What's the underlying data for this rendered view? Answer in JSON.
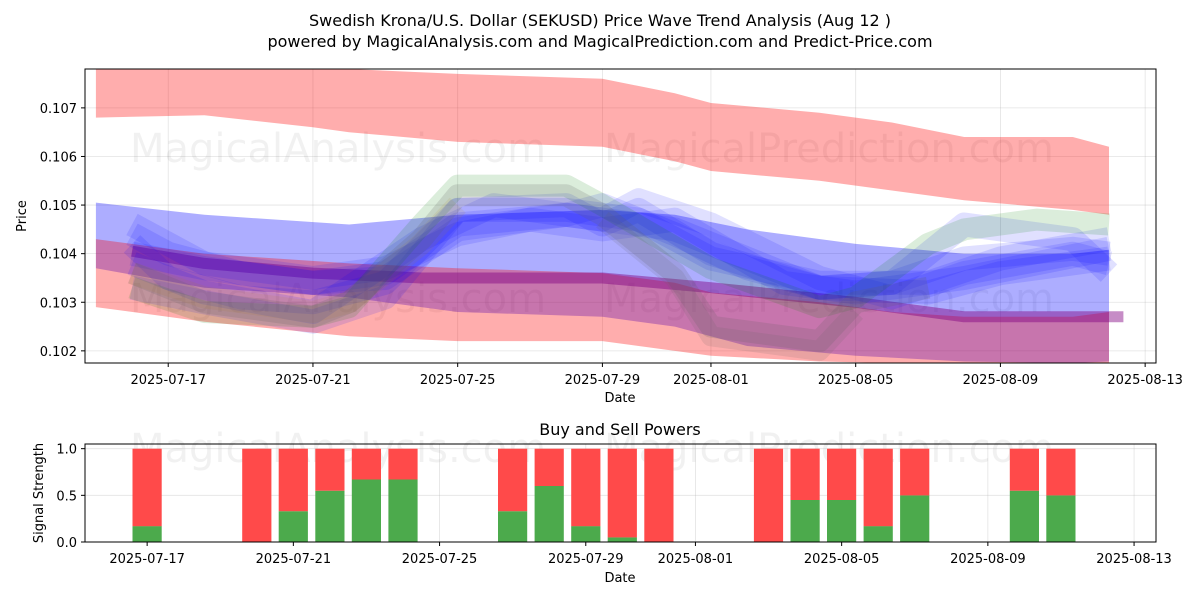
{
  "title_line1": "Swedish Krona/U.S. Dollar (SEKUSD) Price Wave Trend Analysis (Aug 12 )",
  "title_line2": "powered by MagicalAnalysis.com and MagicalPrediction.com and Predict-Price.com",
  "watermarks": [
    "MagicalAnalysis.com",
    "MagicalPrediction.com"
  ],
  "colors": {
    "red": "#ff0000",
    "blue": "#0000ff",
    "green": "#008000",
    "purple": "#800080",
    "buy": "#4caa4c",
    "sell": "#ff4a4a"
  },
  "chart_data": [
    {
      "type": "area",
      "title": "Swedish Krona/U.S. Dollar (SEKUSD) Price Wave Trend Analysis (Aug 12 )",
      "xlabel": "Date",
      "ylabel": "Price",
      "x_range": [
        "2025-07-14.7",
        "2025-08-13.3"
      ],
      "ylim": [
        0.10175,
        0.1078
      ],
      "x_ticks": [
        "2025-07-17",
        "2025-07-21",
        "2025-07-25",
        "2025-07-29",
        "2025-08-01",
        "2025-08-05",
        "2025-08-09",
        "2025-08-13"
      ],
      "y_ticks": [
        "0.102",
        "0.103",
        "0.104",
        "0.105",
        "0.106",
        "0.107"
      ],
      "grid": true,
      "bands": [
        {
          "name": "upper-red-band",
          "color": "red",
          "alpha": 0.32,
          "x": [
            "2025-07-15",
            "2025-07-18",
            "2025-07-21",
            "2025-07-22",
            "2025-07-25",
            "2025-07-29",
            "2025-07-31",
            "2025-08-01",
            "2025-08-04",
            "2025-08-06",
            "2025-08-08",
            "2025-08-11",
            "2025-08-12"
          ],
          "upper": [
            0.1078,
            0.1078,
            0.1078,
            0.1078,
            0.1077,
            0.1076,
            0.1073,
            0.1071,
            0.1069,
            0.1067,
            0.1064,
            0.1064,
            0.1062
          ],
          "lower": [
            0.1068,
            0.10685,
            0.1066,
            0.1065,
            0.1063,
            0.1062,
            0.1059,
            0.1057,
            0.1055,
            0.1053,
            0.1051,
            0.1049,
            0.1048
          ]
        },
        {
          "name": "blue-channel-band",
          "color": "blue",
          "alpha": 0.32,
          "x": [
            "2025-07-15",
            "2025-07-18",
            "2025-07-22",
            "2025-07-25",
            "2025-07-29",
            "2025-07-31",
            "2025-08-02",
            "2025-08-05",
            "2025-08-08",
            "2025-08-11",
            "2025-08-12"
          ],
          "upper": [
            0.10505,
            0.1048,
            0.1046,
            0.1048,
            0.1049,
            0.1048,
            0.1045,
            0.1042,
            0.104,
            0.104,
            0.10408
          ],
          "lower": [
            0.1037,
            0.1033,
            0.1031,
            0.1028,
            0.1027,
            0.1025,
            0.1021,
            0.1019,
            0.10178,
            0.10175,
            0.10178
          ]
        },
        {
          "name": "lower-red-band",
          "color": "red",
          "alpha": 0.32,
          "x": [
            "2025-07-15",
            "2025-07-18",
            "2025-07-22",
            "2025-07-25",
            "2025-07-29",
            "2025-07-31",
            "2025-08-01",
            "2025-08-04",
            "2025-08-06",
            "2025-08-08",
            "2025-08-11",
            "2025-08-12"
          ],
          "upper": [
            0.1043,
            0.104,
            0.1038,
            0.1037,
            0.1036,
            0.1034,
            0.1032,
            0.103,
            0.1028,
            0.1027,
            0.1027,
            0.1028
          ],
          "lower": [
            0.1029,
            0.1026,
            0.1023,
            0.1022,
            0.1022,
            0.102,
            0.1019,
            0.10178,
            0.10175,
            0.10175,
            0.10175,
            0.10175
          ]
        }
      ],
      "lines": [
        {
          "name": "purple-trend",
          "color": "purple",
          "alpha": 0.45,
          "width": 11,
          "x": [
            "2025-07-16",
            "2025-07-18",
            "2025-07-21",
            "2025-07-24",
            "2025-07-29",
            "2025-08-01",
            "2025-08-05",
            "2025-08-08",
            "2025-08-12.4"
          ],
          "y": [
            0.10405,
            0.1038,
            0.1036,
            0.1035,
            0.1035,
            0.1033,
            0.103,
            0.1027,
            0.1027
          ]
        },
        {
          "name": "blue-wave-1",
          "color": "blue",
          "alpha": 0.12,
          "width": 24,
          "x": [
            "2025-07-16",
            "2025-07-17",
            "2025-07-19",
            "2025-07-21",
            "2025-07-23",
            "2025-07-25",
            "2025-07-28",
            "2025-07-30",
            "2025-08-01",
            "2025-08-04",
            "2025-08-07",
            "2025-08-09",
            "2025-08-12"
          ],
          "y": [
            0.1042,
            0.1035,
            0.1031,
            0.103,
            0.1034,
            0.1049,
            0.1049,
            0.1047,
            0.1039,
            0.1034,
            0.1034,
            0.1039,
            0.1043
          ]
        },
        {
          "name": "blue-wave-2",
          "color": "blue",
          "alpha": 0.12,
          "width": 24,
          "x": [
            "2025-07-16",
            "2025-07-17",
            "2025-07-19",
            "2025-07-21",
            "2025-07-23",
            "2025-07-25",
            "2025-07-28",
            "2025-07-29",
            "2025-07-31",
            "2025-08-02",
            "2025-08-04",
            "2025-08-07",
            "2025-08-09",
            "2025-08-12"
          ],
          "y": [
            0.1044,
            0.104,
            0.1036,
            0.1034,
            0.1036,
            0.1046,
            0.1048,
            0.105,
            0.1044,
            0.1037,
            0.1033,
            0.1032,
            0.1036,
            0.1039
          ]
        },
        {
          "name": "blue-wave-3",
          "color": "blue",
          "alpha": 0.12,
          "width": 24,
          "x": [
            "2025-07-16",
            "2025-07-18",
            "2025-07-21",
            "2025-07-22",
            "2025-07-24",
            "2025-07-26",
            "2025-07-29",
            "2025-07-30",
            "2025-08-01",
            "2025-08-04",
            "2025-08-06",
            "2025-08-08",
            "2025-08-11",
            "2025-08-12"
          ],
          "y": [
            0.1038,
            0.1032,
            0.1028,
            0.1033,
            0.1043,
            0.105,
            0.1047,
            0.1051,
            0.1046,
            0.1035,
            0.1031,
            0.1036,
            0.104,
            0.1038
          ]
        },
        {
          "name": "blue-wave-4",
          "color": "blue",
          "alpha": 0.12,
          "width": 24,
          "x": [
            "2025-07-16",
            "2025-07-18",
            "2025-07-21",
            "2025-07-23",
            "2025-07-25",
            "2025-07-27",
            "2025-07-29",
            "2025-07-31",
            "2025-08-03",
            "2025-08-05",
            "2025-08-08",
            "2025-08-10",
            "2025-08-12"
          ],
          "y": [
            0.1046,
            0.1038,
            0.1035,
            0.1037,
            0.1044,
            0.1047,
            0.1045,
            0.1047,
            0.1034,
            0.1032,
            0.1035,
            0.1038,
            0.1041
          ]
        },
        {
          "name": "blue-wave-5",
          "color": "blue",
          "alpha": 0.12,
          "width": 24,
          "x": [
            "2025-07-16",
            "2025-07-18",
            "2025-07-21",
            "2025-07-23",
            "2025-07-25",
            "2025-07-28",
            "2025-07-29",
            "2025-07-30",
            "2025-08-01",
            "2025-08-04",
            "2025-08-06",
            "2025-08-08",
            "2025-08-11",
            "2025-08-12"
          ],
          "y": [
            0.1033,
            0.103,
            0.1026,
            0.1031,
            0.1049,
            0.105,
            0.1046,
            0.1049,
            0.104,
            0.1033,
            0.1034,
            0.1046,
            0.1043,
            0.1036
          ]
        },
        {
          "name": "blue-wave-6",
          "color": "blue",
          "alpha": 0.12,
          "width": 24,
          "x": [
            "2025-07-16",
            "2025-07-18",
            "2025-07-21",
            "2025-07-23",
            "2025-07-25",
            "2025-07-28",
            "2025-07-29",
            "2025-07-31",
            "2025-08-04",
            "2025-08-06",
            "2025-08-08",
            "2025-08-11",
            "2025-08-12"
          ],
          "y": [
            0.104,
            0.1037,
            0.1034,
            0.1035,
            0.1045,
            0.1048,
            0.1047,
            0.1045,
            0.1033,
            0.1034,
            0.1039,
            0.1041,
            0.104
          ]
        },
        {
          "name": "green-wave",
          "color": "green",
          "alpha": 0.14,
          "width": 22,
          "x": [
            "2025-07-16",
            "2025-07-18",
            "2025-07-21",
            "2025-07-22",
            "2025-07-24",
            "2025-07-25",
            "2025-07-28",
            "2025-07-29",
            "2025-08-01",
            "2025-08-04",
            "2025-08-05",
            "2025-08-07",
            "2025-08-08",
            "2025-08-10",
            "2025-08-12"
          ],
          "y": [
            0.1033,
            0.1028,
            0.1027,
            0.1029,
            0.1046,
            0.1054,
            0.1054,
            0.105,
            0.1037,
            0.1029,
            0.1031,
            0.1042,
            0.1045,
            0.1047,
            0.1046
          ]
        },
        {
          "name": "tan-wave-1",
          "color": "#b8860b",
          "alpha": 0.1,
          "width": 22,
          "x": [
            "2025-07-16",
            "2025-07-18",
            "2025-07-21",
            "2025-07-22",
            "2025-07-24",
            "2025-07-25"
          ],
          "y": [
            0.1036,
            0.1031,
            0.1028,
            0.103,
            0.1042,
            0.105
          ]
        },
        {
          "name": "gray-dip-wave",
          "color": "#606060",
          "alpha": 0.18,
          "width": 22,
          "x": [
            "2025-07-16",
            "2025-07-18",
            "2025-07-21",
            "2025-07-22",
            "2025-07-24",
            "2025-07-25",
            "2025-07-28",
            "2025-07-29",
            "2025-07-31",
            "2025-08-01",
            "2025-08-04",
            "2025-08-05",
            "2025-08-07"
          ],
          "y": [
            0.1036,
            0.103,
            0.1027,
            0.103,
            0.1043,
            0.1052,
            0.1052,
            0.1048,
            0.1036,
            0.1025,
            0.1022,
            0.103,
            0.1033
          ]
        },
        {
          "name": "gray-dip-wave-2",
          "color": "#606060",
          "alpha": 0.14,
          "width": 20,
          "x": [
            "2025-07-29",
            "2025-07-31",
            "2025-08-01",
            "2025-08-04",
            "2025-08-05"
          ],
          "y": [
            0.1047,
            0.1035,
            0.1023,
            0.102,
            0.1028
          ]
        }
      ]
    },
    {
      "type": "bar",
      "title": "Buy and Sell Powers",
      "xlabel": "Date",
      "ylabel": "Signal Strength",
      "x_range": [
        "2025-07-15.3",
        "2025-08-13.6"
      ],
      "ylim": [
        0,
        1.05
      ],
      "x_ticks": [
        "2025-07-17",
        "2025-07-21",
        "2025-07-25",
        "2025-07-29",
        "2025-08-01",
        "2025-08-05",
        "2025-08-09",
        "2025-08-13"
      ],
      "y_ticks": [
        "0.0",
        "0.5",
        "1.0"
      ],
      "grid": true,
      "series": [
        {
          "name": "Buy",
          "color": "buy"
        },
        {
          "name": "Sell",
          "color": "sell"
        }
      ],
      "dates": [
        "2025-07-17",
        "2025-07-20",
        "2025-07-21",
        "2025-07-22",
        "2025-07-23",
        "2025-07-24",
        "2025-07-27",
        "2025-07-28",
        "2025-07-29",
        "2025-07-30",
        "2025-07-31",
        "2025-08-03",
        "2025-08-04",
        "2025-08-05",
        "2025-08-06",
        "2025-08-07",
        "2025-08-10",
        "2025-08-11"
      ],
      "buy": [
        0.17,
        0.0,
        0.33,
        0.55,
        0.67,
        0.67,
        0.33,
        0.6,
        0.17,
        0.05,
        0.0,
        0.0,
        0.45,
        0.45,
        0.17,
        0.5,
        0.55,
        0.5
      ],
      "sell": [
        0.83,
        1.0,
        0.67,
        0.45,
        0.33,
        0.33,
        0.67,
        0.4,
        0.83,
        0.95,
        1.0,
        1.0,
        0.55,
        0.55,
        0.83,
        0.5,
        0.45,
        0.5
      ]
    }
  ]
}
